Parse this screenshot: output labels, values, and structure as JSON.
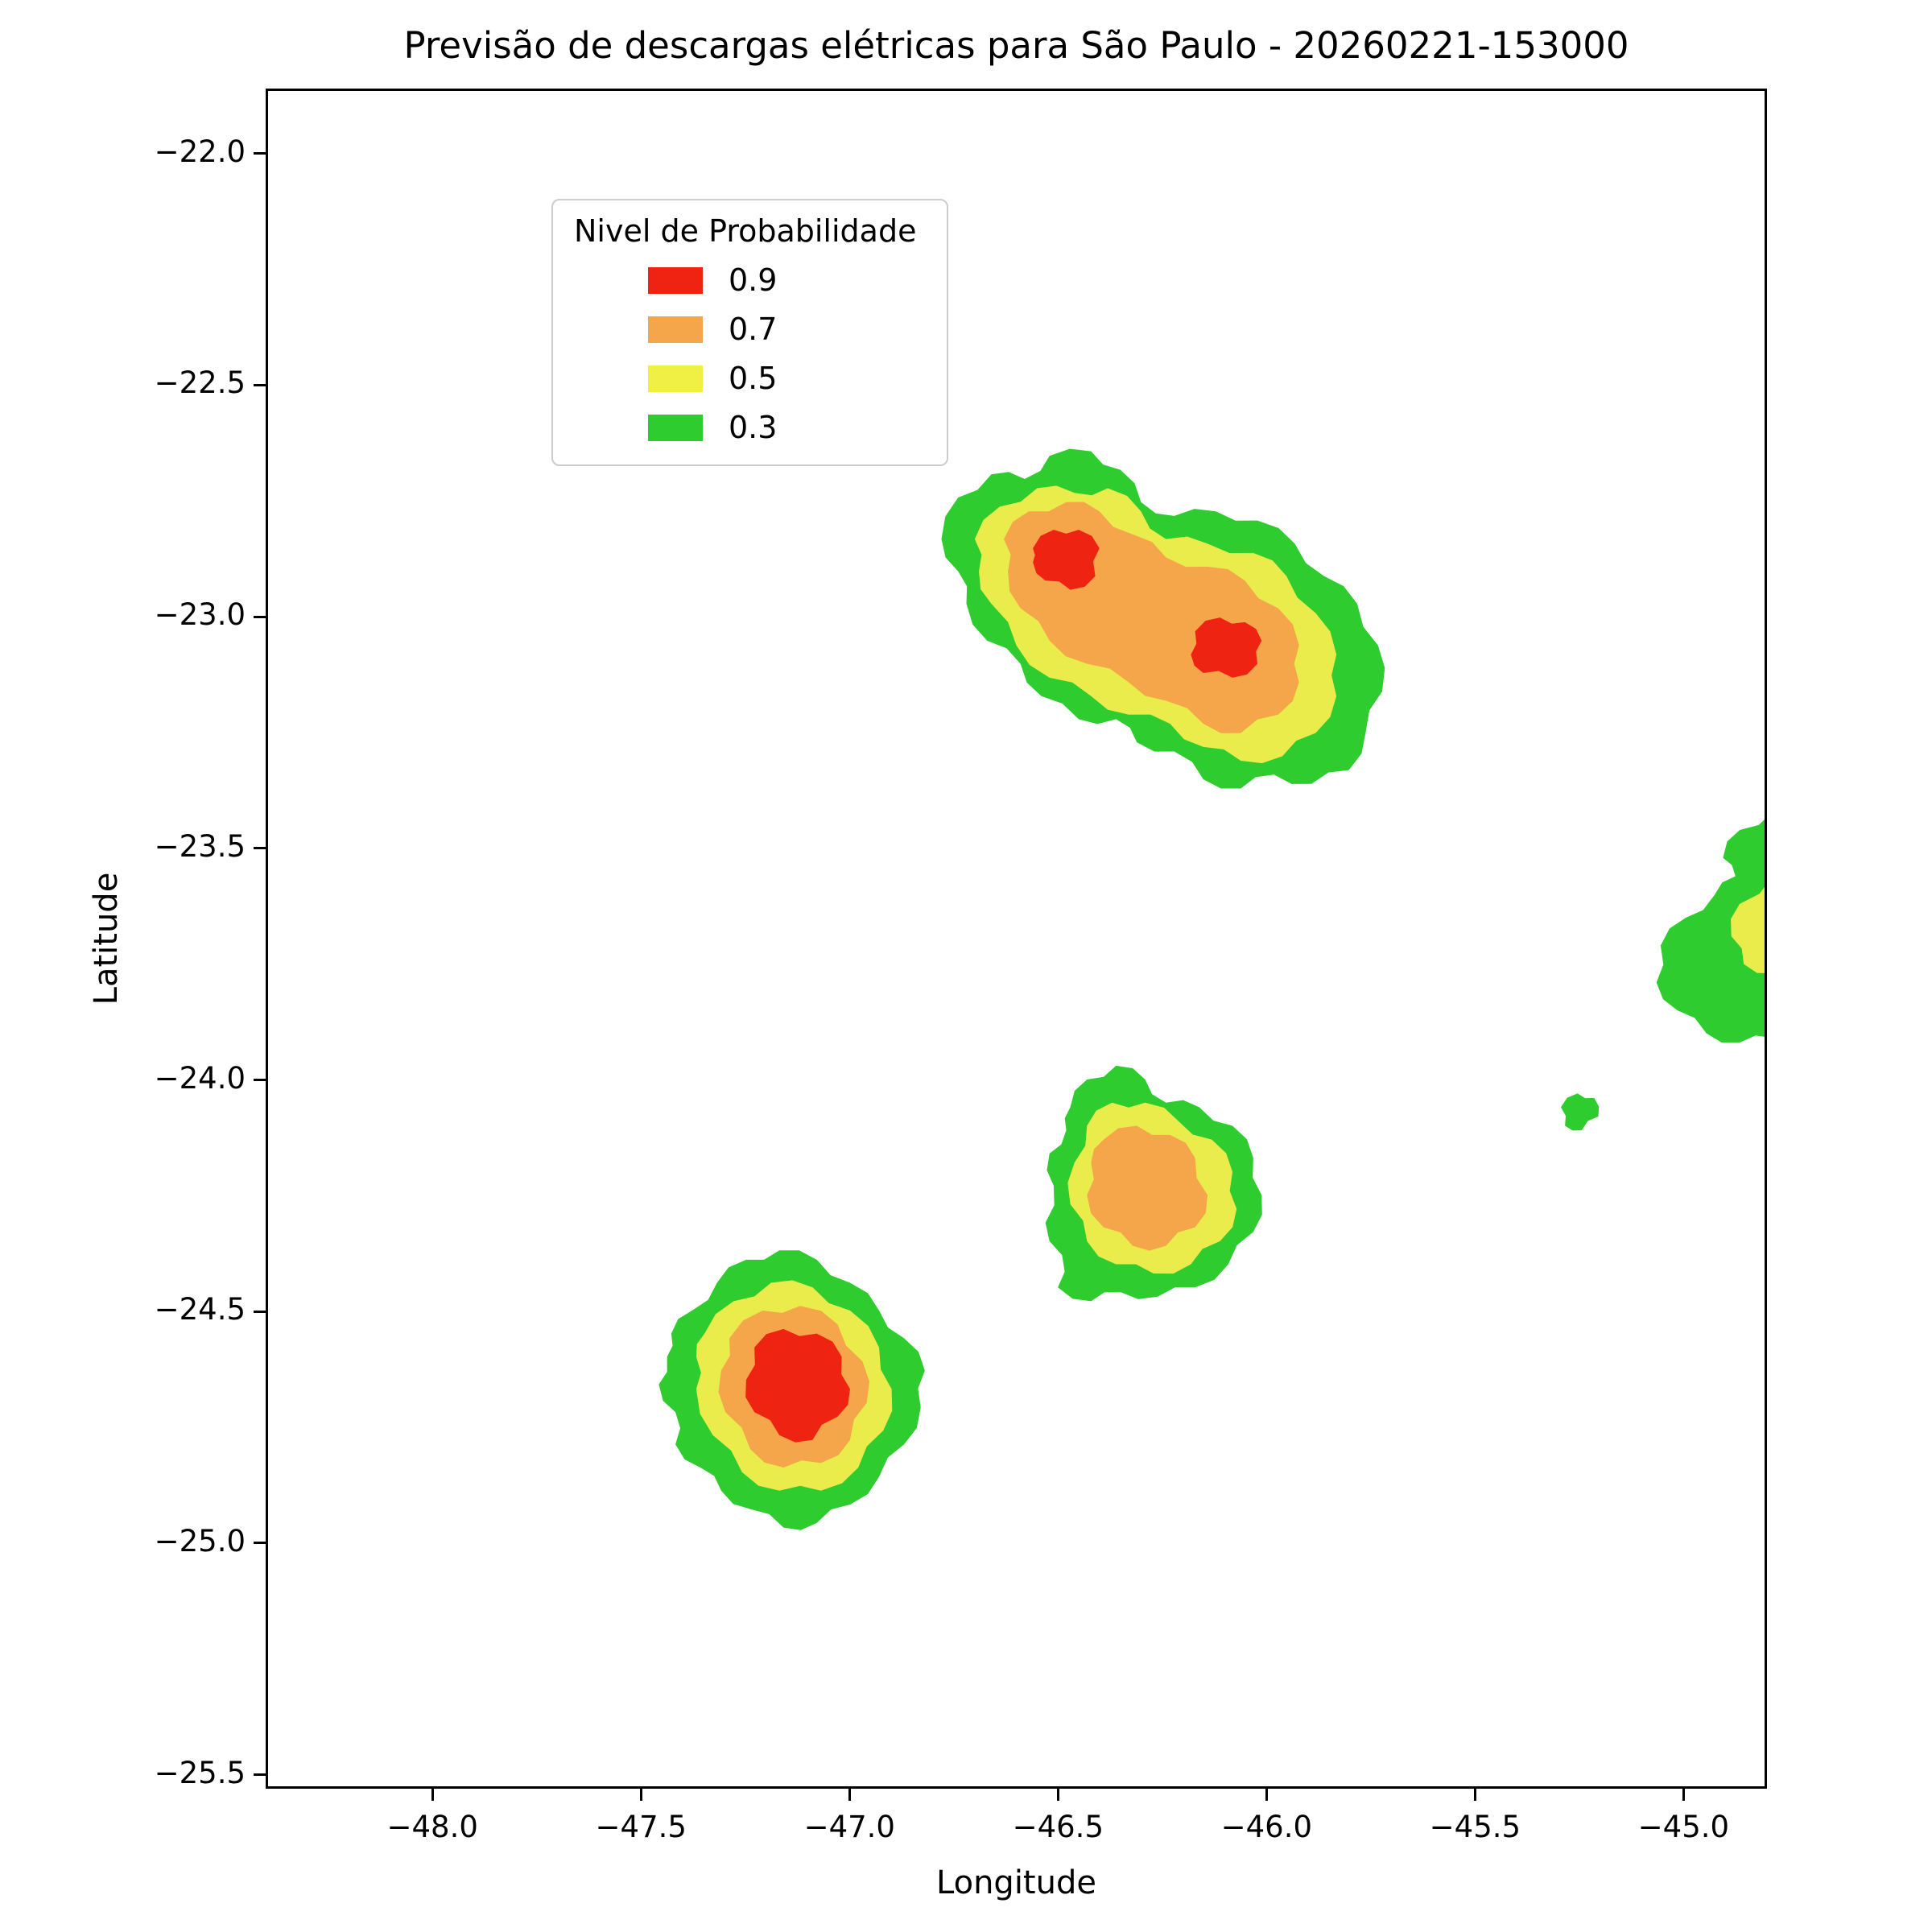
{
  "title": "Previsão de descargas elétricas para São Paulo - 20260221-153000",
  "chart_data": {
    "type": "filled-contour-map",
    "title": "Previsão de descargas elétricas para São Paulo - 20260221-153000",
    "xlabel": "Longitude",
    "ylabel": "Latitude",
    "xlim": [
      -48.4,
      -44.8
    ],
    "ylim": [
      -25.53,
      -21.86
    ],
    "grid": false,
    "xticks": [
      -48.0,
      -47.5,
      -47.0,
      -46.5,
      -46.0,
      -45.5,
      -45.0
    ],
    "xtick_labels": [
      "−48.0",
      "−47.5",
      "−47.0",
      "−46.5",
      "−46.0",
      "−45.5",
      "−45.0"
    ],
    "yticks": [
      -22.0,
      -22.5,
      -23.0,
      -23.5,
      -24.0,
      -24.5,
      -25.0,
      -25.5
    ],
    "ytick_labels": [
      "−22.0",
      "−22.5",
      "−23.0",
      "−23.5",
      "−24.0",
      "−24.5",
      "−25.0",
      "−25.5"
    ],
    "legend": {
      "title": "Nivel de Probabilidade",
      "position": "upper left",
      "entries": [
        {
          "label": "0.9",
          "color": "#ee2312"
        },
        {
          "label": "0.7",
          "color": "#f5a54a"
        },
        {
          "label": "0.5",
          "color": "#f0ef43"
        },
        {
          "label": "0.3",
          "color": "#2ecc2e"
        }
      ]
    },
    "level_colors": {
      "0.9": "#ee2312",
      "0.7": "#f5a54a",
      "0.5": "#e9ec4b",
      "0.3": "#2ecc2e"
    },
    "regions": [
      {
        "id": "storm-north-p30",
        "level": 0.3,
        "polygon": [
          [
            -46.78,
            -22.83
          ],
          [
            -46.74,
            -22.74
          ],
          [
            -46.66,
            -22.69
          ],
          [
            -46.58,
            -22.7
          ],
          [
            -46.52,
            -22.65
          ],
          [
            -46.42,
            -22.64
          ],
          [
            -46.35,
            -22.68
          ],
          [
            -46.3,
            -22.75
          ],
          [
            -46.22,
            -22.78
          ],
          [
            -46.12,
            -22.77
          ],
          [
            -46.02,
            -22.79
          ],
          [
            -45.93,
            -22.84
          ],
          [
            -45.86,
            -22.91
          ],
          [
            -45.78,
            -22.97
          ],
          [
            -45.73,
            -23.06
          ],
          [
            -45.72,
            -23.16
          ],
          [
            -45.76,
            -23.25
          ],
          [
            -45.8,
            -23.33
          ],
          [
            -45.89,
            -23.36
          ],
          [
            -45.98,
            -23.34
          ],
          [
            -46.06,
            -23.37
          ],
          [
            -46.15,
            -23.35
          ],
          [
            -46.22,
            -23.29
          ],
          [
            -46.31,
            -23.27
          ],
          [
            -46.36,
            -23.22
          ],
          [
            -46.45,
            -23.22
          ],
          [
            -46.54,
            -23.17
          ],
          [
            -46.59,
            -23.1
          ],
          [
            -46.67,
            -23.05
          ],
          [
            -46.72,
            -22.97
          ],
          [
            -46.74,
            -22.9
          ]
        ]
      },
      {
        "id": "east-edge-p30",
        "level": 0.3,
        "polygon": [
          [
            -44.78,
            -23.42
          ],
          [
            -44.86,
            -23.46
          ],
          [
            -44.9,
            -23.52
          ],
          [
            -44.87,
            -23.56
          ],
          [
            -44.92,
            -23.6
          ],
          [
            -44.99,
            -23.65
          ],
          [
            -45.05,
            -23.71
          ],
          [
            -45.06,
            -23.79
          ],
          [
            -45.01,
            -23.85
          ],
          [
            -44.94,
            -23.9
          ],
          [
            -44.86,
            -23.92
          ],
          [
            -44.78,
            -23.91
          ]
        ]
      },
      {
        "id": "east-dot-p30",
        "level": 0.3,
        "polygon": [
          [
            -45.29,
            -24.06
          ],
          [
            -45.25,
            -24.03
          ],
          [
            -45.21,
            -24.04
          ],
          [
            -45.2,
            -24.08
          ],
          [
            -45.24,
            -24.11
          ],
          [
            -45.28,
            -24.1
          ]
        ]
      },
      {
        "id": "storm-central-p30",
        "level": 0.3,
        "polygon": [
          [
            -46.47,
            -24.06
          ],
          [
            -46.43,
            -24.0
          ],
          [
            -46.36,
            -23.97
          ],
          [
            -46.29,
            -24.0
          ],
          [
            -46.24,
            -24.05
          ],
          [
            -46.16,
            -24.06
          ],
          [
            -46.08,
            -24.1
          ],
          [
            -46.03,
            -24.17
          ],
          [
            -46.01,
            -24.25
          ],
          [
            -46.03,
            -24.33
          ],
          [
            -46.09,
            -24.4
          ],
          [
            -46.17,
            -24.45
          ],
          [
            -46.26,
            -24.47
          ],
          [
            -46.35,
            -24.46
          ],
          [
            -46.42,
            -24.48
          ],
          [
            -46.5,
            -24.45
          ],
          [
            -46.49,
            -24.38
          ],
          [
            -46.53,
            -24.31
          ],
          [
            -46.51,
            -24.23
          ],
          [
            -46.52,
            -24.16
          ],
          [
            -46.48,
            -24.11
          ]
        ]
      },
      {
        "id": "storm-southwest-p30",
        "level": 0.3,
        "polygon": [
          [
            -47.44,
            -24.6
          ],
          [
            -47.46,
            -24.66
          ],
          [
            -47.42,
            -24.72
          ],
          [
            -47.42,
            -24.79
          ],
          [
            -47.36,
            -24.84
          ],
          [
            -47.31,
            -24.89
          ],
          [
            -47.24,
            -24.93
          ],
          [
            -47.16,
            -24.97
          ],
          [
            -47.08,
            -24.96
          ],
          [
            -47.0,
            -24.92
          ],
          [
            -46.93,
            -24.86
          ],
          [
            -46.87,
            -24.79
          ],
          [
            -46.83,
            -24.71
          ],
          [
            -46.82,
            -24.63
          ],
          [
            -46.87,
            -24.56
          ],
          [
            -46.93,
            -24.5
          ],
          [
            -47.0,
            -24.44
          ],
          [
            -47.08,
            -24.39
          ],
          [
            -47.17,
            -24.37
          ],
          [
            -47.25,
            -24.39
          ],
          [
            -47.32,
            -24.44
          ],
          [
            -47.38,
            -24.5
          ],
          [
            -47.43,
            -24.55
          ]
        ]
      },
      {
        "id": "storm-north-p50",
        "level": 0.5,
        "polygon": [
          [
            -46.7,
            -22.83
          ],
          [
            -46.64,
            -22.76
          ],
          [
            -46.55,
            -22.72
          ],
          [
            -46.46,
            -22.73
          ],
          [
            -46.38,
            -22.72
          ],
          [
            -46.3,
            -22.77
          ],
          [
            -46.24,
            -22.83
          ],
          [
            -46.14,
            -22.84
          ],
          [
            -46.03,
            -22.86
          ],
          [
            -45.95,
            -22.91
          ],
          [
            -45.88,
            -22.99
          ],
          [
            -45.83,
            -23.08
          ],
          [
            -45.83,
            -23.17
          ],
          [
            -45.88,
            -23.25
          ],
          [
            -45.96,
            -23.3
          ],
          [
            -46.06,
            -23.31
          ],
          [
            -46.15,
            -23.28
          ],
          [
            -46.23,
            -23.23
          ],
          [
            -46.33,
            -23.21
          ],
          [
            -46.42,
            -23.17
          ],
          [
            -46.52,
            -23.13
          ],
          [
            -46.6,
            -23.06
          ],
          [
            -46.66,
            -22.97
          ],
          [
            -46.69,
            -22.9
          ]
        ]
      },
      {
        "id": "east-edge-p50",
        "level": 0.5,
        "polygon": [
          [
            -44.78,
            -23.56
          ],
          [
            -44.86,
            -23.62
          ],
          [
            -44.88,
            -23.69
          ],
          [
            -44.85,
            -23.75
          ],
          [
            -44.78,
            -23.77
          ]
        ]
      },
      {
        "id": "storm-central-p50",
        "level": 0.5,
        "polygon": [
          [
            -46.43,
            -24.1
          ],
          [
            -46.37,
            -24.05
          ],
          [
            -46.29,
            -24.05
          ],
          [
            -46.21,
            -24.09
          ],
          [
            -46.13,
            -24.13
          ],
          [
            -46.08,
            -24.2
          ],
          [
            -46.07,
            -24.28
          ],
          [
            -46.11,
            -24.35
          ],
          [
            -46.18,
            -24.4
          ],
          [
            -46.27,
            -24.42
          ],
          [
            -46.36,
            -24.4
          ],
          [
            -46.43,
            -24.35
          ],
          [
            -46.47,
            -24.27
          ],
          [
            -46.46,
            -24.18
          ]
        ]
      },
      {
        "id": "storm-southwest-p50",
        "level": 0.5,
        "polygon": [
          [
            -47.35,
            -24.55
          ],
          [
            -47.28,
            -24.48
          ],
          [
            -47.19,
            -24.44
          ],
          [
            -47.09,
            -24.45
          ],
          [
            -47.0,
            -24.5
          ],
          [
            -46.93,
            -24.58
          ],
          [
            -46.9,
            -24.67
          ],
          [
            -46.92,
            -24.76
          ],
          [
            -46.98,
            -24.84
          ],
          [
            -47.07,
            -24.89
          ],
          [
            -47.17,
            -24.89
          ],
          [
            -47.26,
            -24.85
          ],
          [
            -47.33,
            -24.77
          ],
          [
            -47.37,
            -24.67
          ],
          [
            -47.37,
            -24.6
          ]
        ]
      },
      {
        "id": "storm-north-p70",
        "level": 0.7,
        "polygon": [
          [
            -46.63,
            -22.83
          ],
          [
            -46.57,
            -22.77
          ],
          [
            -46.48,
            -22.75
          ],
          [
            -46.4,
            -22.77
          ],
          [
            -46.32,
            -22.82
          ],
          [
            -46.24,
            -22.87
          ],
          [
            -46.14,
            -22.89
          ],
          [
            -46.05,
            -22.92
          ],
          [
            -45.97,
            -22.98
          ],
          [
            -45.92,
            -23.06
          ],
          [
            -45.92,
            -23.14
          ],
          [
            -45.97,
            -23.21
          ],
          [
            -46.06,
            -23.25
          ],
          [
            -46.15,
            -23.23
          ],
          [
            -46.24,
            -23.18
          ],
          [
            -46.33,
            -23.14
          ],
          [
            -46.43,
            -23.1
          ],
          [
            -46.52,
            -23.05
          ],
          [
            -46.59,
            -22.98
          ],
          [
            -46.62,
            -22.9
          ]
        ]
      },
      {
        "id": "storm-central-p70",
        "level": 0.7,
        "polygon": [
          [
            -46.39,
            -24.13
          ],
          [
            -46.31,
            -24.1
          ],
          [
            -46.23,
            -24.12
          ],
          [
            -46.17,
            -24.17
          ],
          [
            -46.14,
            -24.25
          ],
          [
            -46.17,
            -24.32
          ],
          [
            -46.24,
            -24.36
          ],
          [
            -46.32,
            -24.36
          ],
          [
            -46.39,
            -24.32
          ],
          [
            -46.43,
            -24.25
          ],
          [
            -46.42,
            -24.18
          ]
        ]
      },
      {
        "id": "storm-southwest-p70",
        "level": 0.7,
        "polygon": [
          [
            -47.29,
            -24.56
          ],
          [
            -47.21,
            -24.5
          ],
          [
            -47.12,
            -24.49
          ],
          [
            -47.03,
            -24.53
          ],
          [
            -46.97,
            -24.61
          ],
          [
            -46.96,
            -24.7
          ],
          [
            -47.0,
            -24.78
          ],
          [
            -47.07,
            -24.83
          ],
          [
            -47.16,
            -24.84
          ],
          [
            -47.24,
            -24.8
          ],
          [
            -47.3,
            -24.72
          ],
          [
            -47.31,
            -24.63
          ]
        ]
      },
      {
        "id": "storm-north-core1-p90",
        "level": 0.9,
        "polygon": [
          [
            -46.56,
            -22.85
          ],
          [
            -46.51,
            -22.81
          ],
          [
            -46.45,
            -22.81
          ],
          [
            -46.4,
            -22.85
          ],
          [
            -46.41,
            -22.91
          ],
          [
            -46.47,
            -22.94
          ],
          [
            -46.53,
            -22.92
          ],
          [
            -46.56,
            -22.88
          ]
        ]
      },
      {
        "id": "storm-north-core2-p90",
        "level": 0.9,
        "polygon": [
          [
            -46.17,
            -23.03
          ],
          [
            -46.11,
            -23.0
          ],
          [
            -46.05,
            -23.01
          ],
          [
            -46.01,
            -23.05
          ],
          [
            -46.02,
            -23.1
          ],
          [
            -46.08,
            -23.13
          ],
          [
            -46.15,
            -23.12
          ],
          [
            -46.18,
            -23.08
          ]
        ]
      },
      {
        "id": "storm-southwest-p90",
        "level": 0.9,
        "polygon": [
          [
            -47.23,
            -24.58
          ],
          [
            -47.16,
            -24.54
          ],
          [
            -47.08,
            -24.55
          ],
          [
            -47.02,
            -24.6
          ],
          [
            -47.0,
            -24.67
          ],
          [
            -47.03,
            -24.73
          ],
          [
            -47.09,
            -24.78
          ],
          [
            -47.17,
            -24.77
          ],
          [
            -47.23,
            -24.72
          ],
          [
            -47.25,
            -24.65
          ]
        ]
      }
    ]
  }
}
